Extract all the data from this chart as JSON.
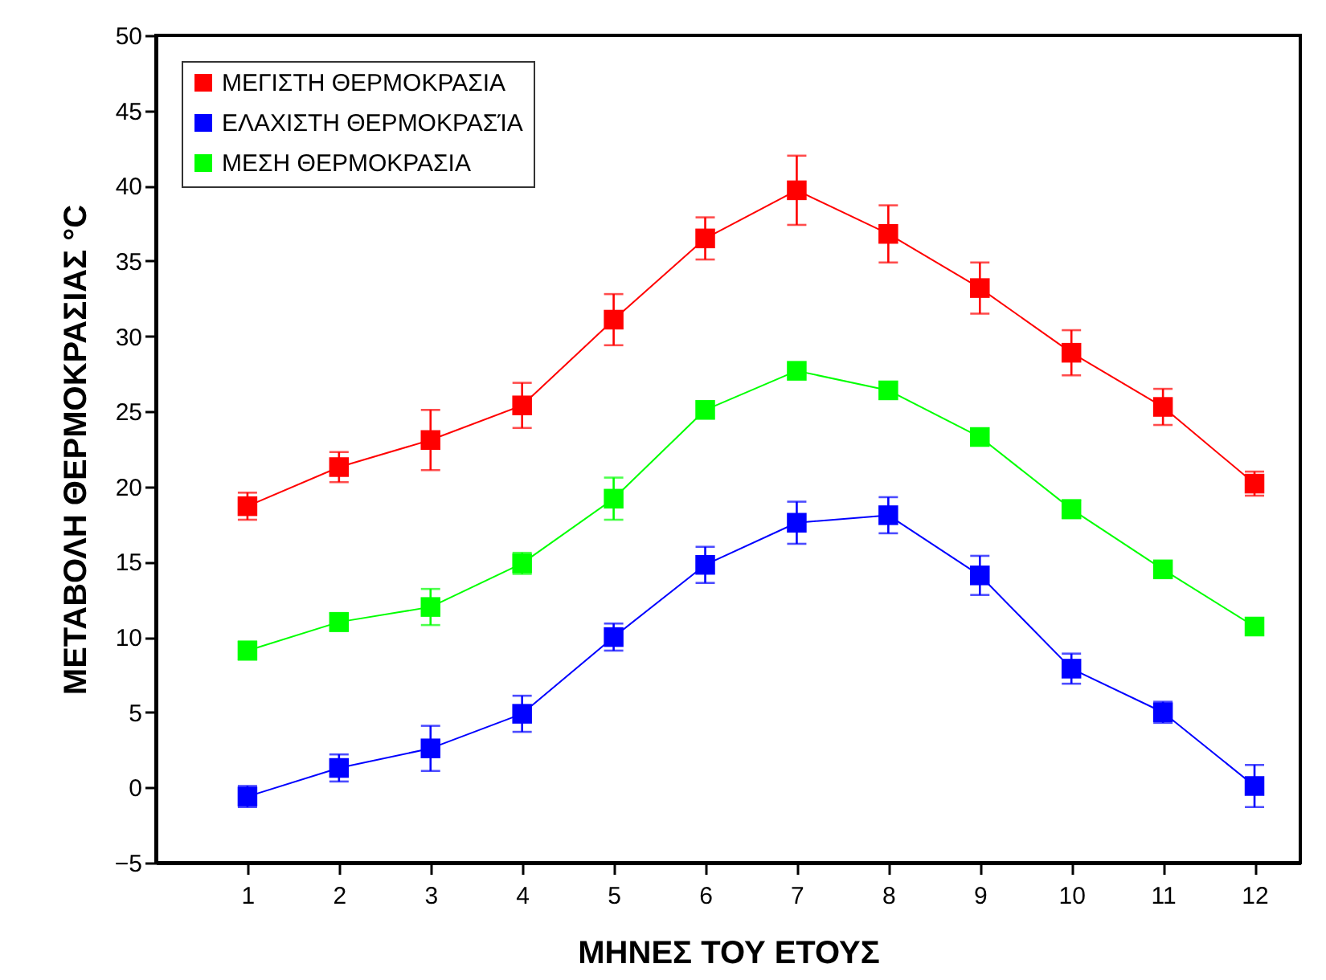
{
  "chart_data": {
    "type": "line",
    "xlabel": "ΜΗΝΕΣ ΤΟΥ ΕΤΟΥΣ",
    "ylabel": "ΜΕΤΑΒΟΛΗ ΘΕΡΜΟΚΡΑΣΙΑΣ °C",
    "x": [
      1,
      2,
      3,
      4,
      5,
      6,
      7,
      8,
      9,
      10,
      11,
      12
    ],
    "xlim": [
      0,
      12.5
    ],
    "xticks": [
      1,
      2,
      3,
      4,
      5,
      6,
      7,
      8,
      9,
      10,
      11,
      12
    ],
    "ylim": [
      -5,
      50
    ],
    "yticks": [
      -5,
      0,
      5,
      10,
      15,
      20,
      25,
      30,
      35,
      40,
      45,
      50
    ],
    "grid": false,
    "legend": "top left",
    "marker": "square",
    "line_style": "solid",
    "series": [
      {
        "name": "ΜΕΓΙΣΤΗ ΘΕΡΜΟΚΡΑΣΙΑ",
        "color": "#ff0000",
        "values": [
          18.7,
          21.3,
          23.1,
          25.4,
          31.1,
          36.5,
          39.7,
          36.8,
          33.2,
          28.9,
          25.3,
          20.2
        ],
        "errors": [
          0.9,
          1.0,
          2.0,
          1.5,
          1.7,
          1.4,
          2.3,
          1.9,
          1.7,
          1.5,
          1.2,
          0.8
        ]
      },
      {
        "name": "ΕΛΑΧΙΣΤΗ ΘΕΡΜΟΚΡΑΣΊΑ",
        "color": "#0000ff",
        "values": [
          -0.6,
          1.3,
          2.6,
          4.9,
          10.0,
          14.8,
          17.6,
          18.1,
          14.1,
          7.9,
          5.0,
          0.1
        ],
        "errors": [
          0.7,
          0.9,
          1.5,
          1.2,
          0.9,
          1.2,
          1.4,
          1.2,
          1.3,
          1.0,
          0.7,
          1.4
        ]
      },
      {
        "name": "ΜΕΣΗ ΘΕΡΜΟΚΡΑΣΙΑ",
        "color": "#00ff00",
        "values": [
          9.1,
          11.0,
          12.0,
          14.9,
          19.2,
          25.1,
          27.7,
          26.4,
          23.3,
          18.5,
          14.5,
          10.7
        ],
        "errors": [
          0.6,
          0.6,
          1.2,
          0.7,
          1.4,
          null,
          null,
          null,
          null,
          0.6,
          null,
          null
        ]
      }
    ]
  }
}
